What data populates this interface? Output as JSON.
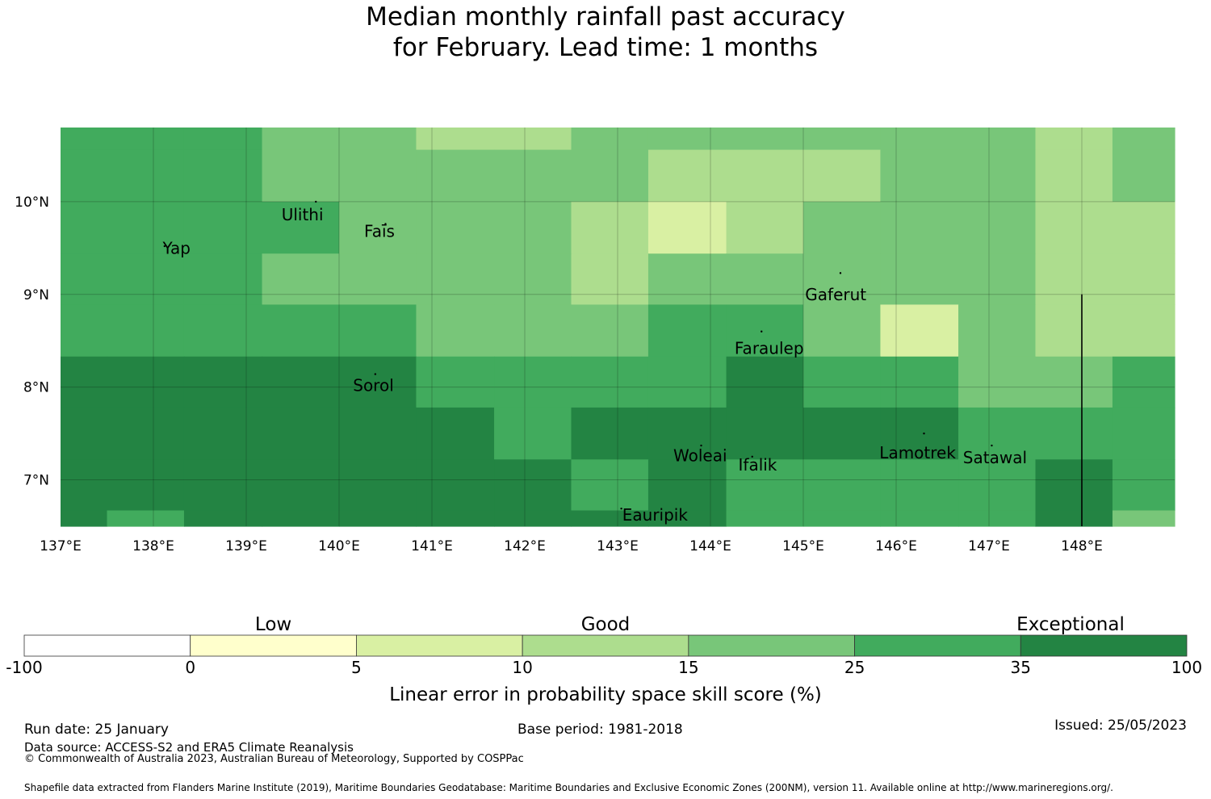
{
  "title": {
    "line1": "Median monthly rainfall past accuracy",
    "line2": "for February. Lead time: 1 months"
  },
  "map": {
    "lon_range": [
      137.0,
      149.0
    ],
    "lat_range": [
      6.5,
      10.8
    ],
    "lon_ticks": [
      "137°E",
      "138°E",
      "139°E",
      "140°E",
      "141°E",
      "142°E",
      "143°E",
      "144°E",
      "145°E",
      "146°E",
      "147°E",
      "148°E"
    ],
    "lat_ticks": [
      "7°N",
      "8°N",
      "9°N",
      "10°N"
    ],
    "gridlines": true,
    "colors": [
      "#ffffff",
      "#ffffcc",
      "#d9f0a3",
      "#addd8e",
      "#78c679",
      "#41ab5d",
      "#238443"
    ],
    "skill_cells_lon_edges": [
      137.0,
      137.5,
      138.33,
      139.17,
      140.0,
      140.83,
      141.67,
      142.5,
      143.33,
      144.17,
      145.0,
      145.83,
      146.67,
      147.5,
      148.33,
      149.0
    ],
    "skill_cells_lat_edges": [
      10.8,
      10.56,
      10.0,
      9.44,
      8.89,
      8.33,
      7.78,
      7.22,
      6.67,
      6.5
    ],
    "skill_class_grid": [
      [
        5,
        5,
        5,
        4,
        4,
        3,
        3,
        4,
        4,
        4,
        4,
        4,
        4,
        3,
        4
      ],
      [
        5,
        5,
        5,
        4,
        4,
        4,
        4,
        4,
        3,
        3,
        3,
        4,
        4,
        3,
        4
      ],
      [
        5,
        5,
        5,
        5,
        4,
        4,
        4,
        3,
        2,
        3,
        4,
        4,
        4,
        3,
        3
      ],
      [
        5,
        5,
        5,
        4,
        4,
        4,
        4,
        3,
        4,
        4,
        4,
        4,
        4,
        3,
        3
      ],
      [
        5,
        5,
        5,
        5,
        5,
        4,
        4,
        4,
        5,
        5,
        4,
        2,
        4,
        3,
        3
      ],
      [
        6,
        6,
        6,
        6,
        6,
        5,
        5,
        5,
        5,
        6,
        5,
        5,
        4,
        4,
        5
      ],
      [
        6,
        6,
        6,
        6,
        6,
        6,
        5,
        6,
        6,
        6,
        6,
        6,
        5,
        5,
        5
      ],
      [
        6,
        6,
        6,
        6,
        6,
        6,
        6,
        5,
        6,
        5,
        5,
        5,
        5,
        6,
        5
      ],
      [
        6,
        5,
        6,
        6,
        6,
        6,
        6,
        6,
        6,
        5,
        5,
        5,
        5,
        6,
        4
      ]
    ],
    "boundary_line": {
      "lon": 148.0,
      "lat_from": 6.5,
      "lat_to": 9.0
    },
    "islands": [
      {
        "name": "Yap",
        "lon": 138.12,
        "lat": 9.52,
        "label_lon": 138.1,
        "label_lat": 9.5
      },
      {
        "name": "Ulithi",
        "lon": 139.75,
        "lat": 10.0,
        "label_lon": 139.38,
        "label_lat": 9.86
      },
      {
        "name": "Faīs",
        "lon": 140.5,
        "lat": 9.76,
        "label_lon": 140.27,
        "label_lat": 9.68
      },
      {
        "name": "Gaferut",
        "lon": 145.4,
        "lat": 9.23,
        "label_lon": 145.02,
        "label_lat": 9.0
      },
      {
        "name": "Faraulep",
        "lon": 144.55,
        "lat": 8.6,
        "label_lon": 144.26,
        "label_lat": 8.42
      },
      {
        "name": "Sorol",
        "lon": 140.39,
        "lat": 8.14,
        "label_lon": 140.15,
        "label_lat": 8.02
      },
      {
        "name": "Woleai",
        "lon": 143.9,
        "lat": 7.37,
        "label_lon": 143.6,
        "label_lat": 7.26
      },
      {
        "name": "Ifalik",
        "lon": 144.45,
        "lat": 7.25,
        "label_lon": 144.3,
        "label_lat": 7.16
      },
      {
        "name": "Lamotrek",
        "lon": 146.3,
        "lat": 7.5,
        "label_lon": 145.82,
        "label_lat": 7.29
      },
      {
        "name": "Satawal",
        "lon": 147.03,
        "lat": 7.37,
        "label_lon": 146.72,
        "label_lat": 7.24
      },
      {
        "name": "Eauripik",
        "lon": 143.04,
        "lat": 6.69,
        "label_lon": 143.05,
        "label_lat": 6.62
      }
    ]
  },
  "legend": {
    "categories": [
      "Low",
      "Good",
      "Exceptional"
    ],
    "boundaries": [
      "-100",
      "0",
      "5",
      "10",
      "15",
      "25",
      "35",
      "100"
    ],
    "label": "Linear error in probability space skill score (%)"
  },
  "footer": {
    "run_date": "Run date: 25 January",
    "base_period": "Base period: 1981-2018",
    "issued": "Issued: 25/05/2023",
    "data_source": "Data source: ACCESS-S2 and ERA5 Climate Reanalysis",
    "copyright": "© Commonwealth of Australia 2023, Australian Bureau of Meteorology, Supported by COSPPac",
    "shapefile": "Shapefile data extracted from Flanders Marine Institute (2019), Maritime Boundaries Geodatabase: Maritime Boundaries and Exclusive Economic Zones (200NM), version 11. Available online at http://www.marineregions.org/."
  }
}
